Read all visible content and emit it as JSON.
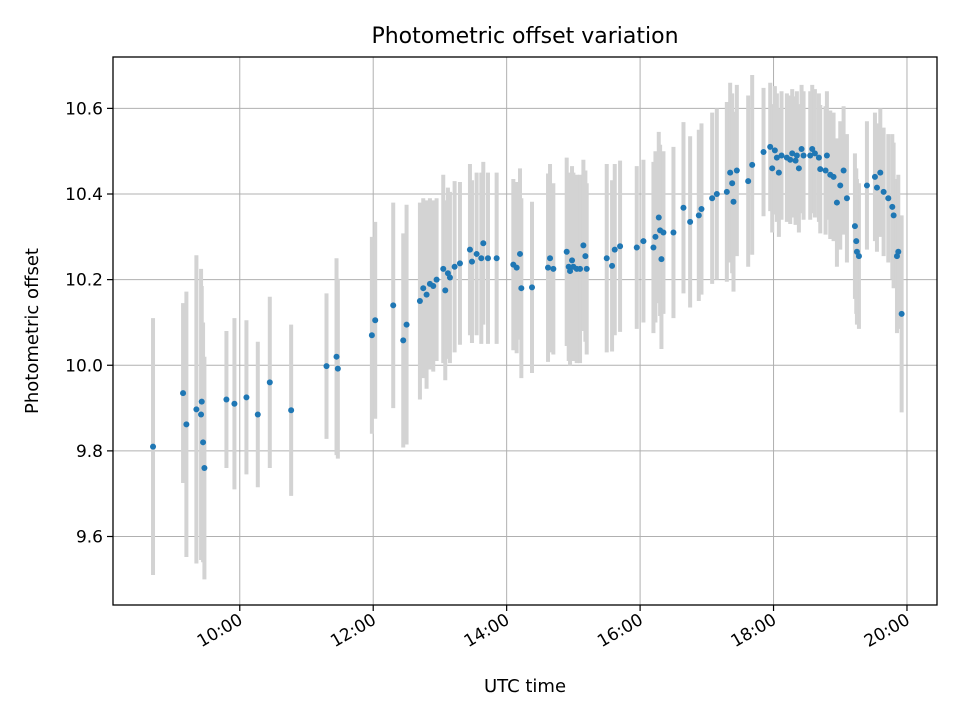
{
  "chart_data": {
    "type": "scatter",
    "title": "Photometric offset variation",
    "xlabel": "UTC time",
    "ylabel": "Photometric offset",
    "x_unit": "hours UTC",
    "xlim": [
      8.1,
      20.45
    ],
    "ylim": [
      9.44,
      10.72
    ],
    "grid": true,
    "colors": {
      "point": "#1f77b4",
      "errorbar": "#d3d3d3",
      "grid": "#b0b0b0"
    },
    "x_ticks": [
      {
        "value": 10,
        "label": "10:00"
      },
      {
        "value": 12,
        "label": "12:00"
      },
      {
        "value": 14,
        "label": "14:00"
      },
      {
        "value": 16,
        "label": "16:00"
      },
      {
        "value": 18,
        "label": "18:00"
      },
      {
        "value": 20,
        "label": "20:00"
      }
    ],
    "y_ticks": [
      {
        "value": 9.6,
        "label": "9.6"
      },
      {
        "value": 9.8,
        "label": "9.8"
      },
      {
        "value": 10.0,
        "label": "10.0"
      },
      {
        "value": 10.2,
        "label": "10.2"
      },
      {
        "value": 10.4,
        "label": "10.4"
      },
      {
        "value": 10.6,
        "label": "10.6"
      }
    ],
    "points": [
      [
        8.7,
        9.81,
        0.3
      ],
      [
        9.15,
        9.935,
        0.21
      ],
      [
        9.2,
        9.862,
        0.31
      ],
      [
        9.35,
        9.897,
        0.36
      ],
      [
        9.43,
        9.915,
        0.27
      ],
      [
        9.42,
        9.885,
        0.34
      ],
      [
        9.45,
        9.82,
        0.28
      ],
      [
        9.47,
        9.76,
        0.26
      ],
      [
        9.8,
        9.92,
        0.16
      ],
      [
        9.92,
        9.91,
        0.2
      ],
      [
        10.1,
        9.925,
        0.18
      ],
      [
        10.27,
        9.885,
        0.17
      ],
      [
        10.45,
        9.96,
        0.2
      ],
      [
        10.77,
        9.895,
        0.2
      ],
      [
        11.3,
        9.998,
        0.17
      ],
      [
        11.45,
        10.02,
        0.23
      ],
      [
        11.47,
        9.992,
        0.21
      ],
      [
        11.98,
        10.07,
        0.23
      ],
      [
        12.03,
        10.105,
        0.23
      ],
      [
        12.3,
        10.14,
        0.24
      ],
      [
        12.45,
        10.058,
        0.25
      ],
      [
        12.5,
        10.095,
        0.28
      ],
      [
        12.7,
        10.15,
        0.23
      ],
      [
        12.75,
        10.18,
        0.21
      ],
      [
        12.8,
        10.165,
        0.22
      ],
      [
        12.85,
        10.19,
        0.2
      ],
      [
        12.9,
        10.185,
        0.2
      ],
      [
        12.95,
        10.2,
        0.19
      ],
      [
        13.05,
        10.225,
        0.22
      ],
      [
        13.08,
        10.175,
        0.21
      ],
      [
        13.12,
        10.215,
        0.2
      ],
      [
        13.15,
        10.205,
        0.2
      ],
      [
        13.22,
        10.23,
        0.2
      ],
      [
        13.3,
        10.238,
        0.19
      ],
      [
        13.45,
        10.27,
        0.2
      ],
      [
        13.48,
        10.242,
        0.19
      ],
      [
        13.55,
        10.26,
        0.19
      ],
      [
        13.62,
        10.25,
        0.2
      ],
      [
        13.65,
        10.285,
        0.19
      ],
      [
        13.72,
        10.25,
        0.2
      ],
      [
        13.85,
        10.25,
        0.2
      ],
      [
        14.1,
        10.235,
        0.2
      ],
      [
        14.15,
        10.228,
        0.2
      ],
      [
        14.2,
        10.26,
        0.2
      ],
      [
        14.22,
        10.18,
        0.21
      ],
      [
        14.38,
        10.182,
        0.2
      ],
      [
        14.62,
        10.228,
        0.22
      ],
      [
        14.65,
        10.25,
        0.22
      ],
      [
        14.7,
        10.225,
        0.2
      ],
      [
        14.9,
        10.265,
        0.22
      ],
      [
        14.93,
        10.23,
        0.22
      ],
      [
        14.95,
        10.22,
        0.22
      ],
      [
        14.98,
        10.245,
        0.22
      ],
      [
        15.0,
        10.23,
        0.22
      ],
      [
        15.05,
        10.225,
        0.22
      ],
      [
        15.1,
        10.225,
        0.22
      ],
      [
        15.15,
        10.28,
        0.2
      ],
      [
        15.18,
        10.255,
        0.2
      ],
      [
        15.2,
        10.225,
        0.2
      ],
      [
        15.5,
        10.25,
        0.22
      ],
      [
        15.58,
        10.232,
        0.2
      ],
      [
        15.62,
        10.27,
        0.2
      ],
      [
        15.7,
        10.278,
        0.2
      ],
      [
        15.95,
        10.275,
        0.19
      ],
      [
        16.05,
        10.29,
        0.19
      ],
      [
        16.2,
        10.275,
        0.2
      ],
      [
        16.23,
        10.3,
        0.2
      ],
      [
        16.28,
        10.345,
        0.2
      ],
      [
        16.3,
        10.315,
        0.2
      ],
      [
        16.32,
        10.248,
        0.21
      ],
      [
        16.35,
        10.31,
        0.19
      ],
      [
        16.5,
        10.31,
        0.2
      ],
      [
        16.65,
        10.368,
        0.2
      ],
      [
        16.75,
        10.335,
        0.2
      ],
      [
        16.88,
        10.35,
        0.2
      ],
      [
        16.92,
        10.365,
        0.2
      ],
      [
        17.08,
        10.39,
        0.2
      ],
      [
        17.15,
        10.4,
        0.2
      ],
      [
        17.3,
        10.405,
        0.21
      ],
      [
        17.35,
        10.45,
        0.21
      ],
      [
        17.38,
        10.425,
        0.21
      ],
      [
        17.4,
        10.382,
        0.21
      ],
      [
        17.45,
        10.455,
        0.2
      ],
      [
        17.62,
        10.43,
        0.2
      ],
      [
        17.68,
        10.468,
        0.21
      ],
      [
        17.85,
        10.498,
        0.15
      ],
      [
        17.95,
        10.51,
        0.15
      ],
      [
        17.98,
        10.46,
        0.15
      ],
      [
        18.02,
        10.502,
        0.15
      ],
      [
        18.05,
        10.485,
        0.15
      ],
      [
        18.08,
        10.45,
        0.15
      ],
      [
        18.12,
        10.49,
        0.15
      ],
      [
        18.2,
        10.485,
        0.15
      ],
      [
        18.25,
        10.48,
        0.15
      ],
      [
        18.28,
        10.495,
        0.15
      ],
      [
        18.33,
        10.478,
        0.15
      ],
      [
        18.35,
        10.49,
        0.15
      ],
      [
        18.38,
        10.46,
        0.15
      ],
      [
        18.42,
        10.505,
        0.15
      ],
      [
        18.45,
        10.49,
        0.15
      ],
      [
        18.55,
        10.49,
        0.15
      ],
      [
        18.58,
        10.505,
        0.15
      ],
      [
        18.62,
        10.495,
        0.15
      ],
      [
        18.68,
        10.485,
        0.15
      ],
      [
        18.7,
        10.458,
        0.15
      ],
      [
        18.78,
        10.455,
        0.15
      ],
      [
        18.8,
        10.49,
        0.15
      ],
      [
        18.85,
        10.445,
        0.15
      ],
      [
        18.9,
        10.44,
        0.15
      ],
      [
        18.95,
        10.38,
        0.15
      ],
      [
        19.0,
        10.42,
        0.15
      ],
      [
        19.05,
        10.455,
        0.15
      ],
      [
        19.1,
        10.39,
        0.15
      ],
      [
        19.22,
        10.325,
        0.17
      ],
      [
        19.24,
        10.29,
        0.17
      ],
      [
        19.28,
        10.255,
        0.17
      ],
      [
        19.25,
        10.265,
        0.17
      ],
      [
        19.4,
        10.42,
        0.15
      ],
      [
        19.52,
        10.44,
        0.15
      ],
      [
        19.55,
        10.415,
        0.15
      ],
      [
        19.6,
        10.45,
        0.15
      ],
      [
        19.65,
        10.405,
        0.15
      ],
      [
        19.72,
        10.39,
        0.15
      ],
      [
        19.78,
        10.37,
        0.17
      ],
      [
        19.8,
        10.35,
        0.17
      ],
      [
        19.85,
        10.255,
        0.18
      ],
      [
        19.87,
        10.265,
        0.18
      ],
      [
        19.92,
        10.12,
        0.23
      ]
    ]
  }
}
